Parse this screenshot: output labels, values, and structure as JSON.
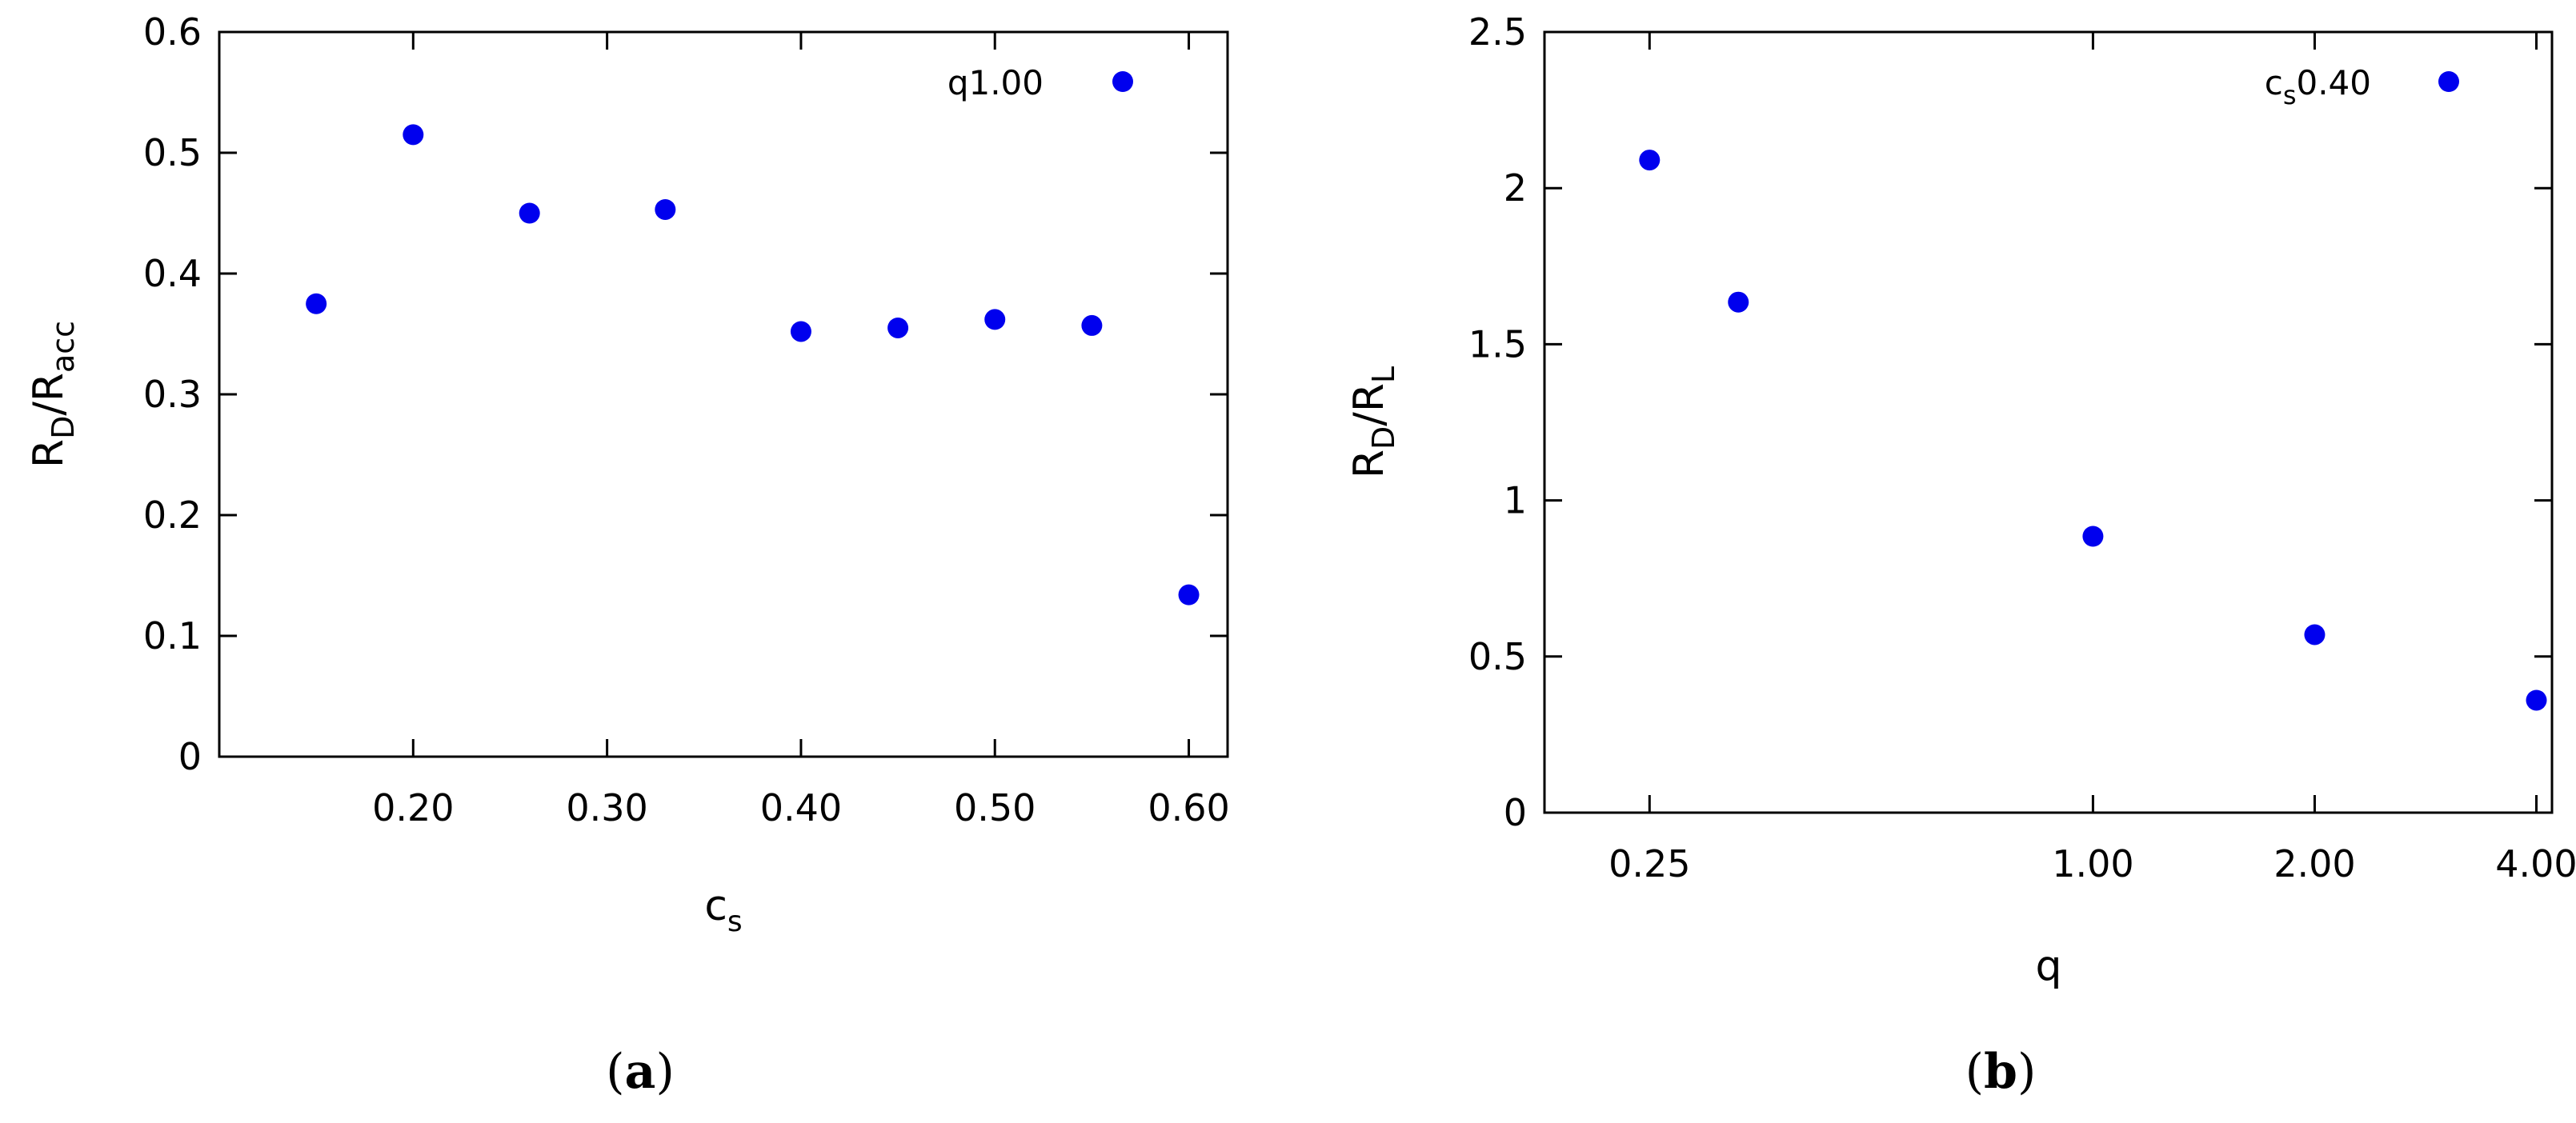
{
  "chart_data": [
    {
      "type": "scatter",
      "panel_label": "a",
      "xlabel": {
        "main": "c",
        "sub": "s"
      },
      "ylabel": {
        "main1": "R",
        "sub1": "D",
        "mid": "/R",
        "sub2": "acc"
      },
      "xlim": [
        0.1,
        0.62
      ],
      "ylim": [
        0,
        0.6
      ],
      "xticks": [
        {
          "value": 0.2,
          "label": "0.20"
        },
        {
          "value": 0.3,
          "label": "0.30"
        },
        {
          "value": 0.4,
          "label": "0.40"
        },
        {
          "value": 0.5,
          "label": "0.50"
        },
        {
          "value": 0.6,
          "label": "0.60"
        }
      ],
      "yticks": [
        {
          "value": 0,
          "label": "0"
        },
        {
          "value": 0.1,
          "label": "0.1"
        },
        {
          "value": 0.2,
          "label": "0.2"
        },
        {
          "value": 0.3,
          "label": "0.3"
        },
        {
          "value": 0.4,
          "label": "0.4"
        },
        {
          "value": 0.5,
          "label": "0.5"
        },
        {
          "value": 0.6,
          "label": "0.6"
        }
      ],
      "legend": {
        "position": "top-right",
        "label": {
          "main": "q1.00"
        }
      },
      "color": "#0000ee",
      "series": [
        {
          "points": [
            {
              "x": 0.15,
              "y": 0.375
            },
            {
              "x": 0.2,
              "y": 0.515
            },
            {
              "x": 0.26,
              "y": 0.45
            },
            {
              "x": 0.33,
              "y": 0.453
            },
            {
              "x": 0.4,
              "y": 0.352
            },
            {
              "x": 0.45,
              "y": 0.355
            },
            {
              "x": 0.5,
              "y": 0.362
            },
            {
              "x": 0.55,
              "y": 0.357
            },
            {
              "x": 0.6,
              "y": 0.134
            }
          ]
        }
      ]
    },
    {
      "type": "scatter",
      "panel_label": "b",
      "xlabel": {
        "main": "q"
      },
      "ylabel": {
        "main1": "R",
        "sub1": "D",
        "mid": "/R",
        "sub2": "L"
      },
      "xlim": [
        0.18,
        4.2
      ],
      "x_scale": "log",
      "ylim": [
        0,
        2.5
      ],
      "xticks": [
        {
          "value": 0.25,
          "label": "0.25"
        },
        {
          "value": 1.0,
          "label": "1.00"
        },
        {
          "value": 2.0,
          "label": "2.00"
        },
        {
          "value": 4.0,
          "label": "4.00"
        }
      ],
      "yticks": [
        {
          "value": 0,
          "label": "0"
        },
        {
          "value": 0.5,
          "label": "0.5"
        },
        {
          "value": 1,
          "label": "1"
        },
        {
          "value": 1.5,
          "label": "1.5"
        },
        {
          "value": 2,
          "label": "2"
        },
        {
          "value": 2.5,
          "label": "2.5"
        }
      ],
      "legend": {
        "position": "top-right",
        "label": {
          "main": "c",
          "sub": "s",
          "tail": "0.40"
        }
      },
      "color": "#0000ee",
      "series": [
        {
          "points": [
            {
              "x": 0.25,
              "y": 2.09
            },
            {
              "x": 0.33,
              "y": 1.635
            },
            {
              "x": 1.0,
              "y": 0.885
            },
            {
              "x": 2.0,
              "y": 0.57
            },
            {
              "x": 4.0,
              "y": 0.36
            }
          ]
        }
      ]
    }
  ]
}
